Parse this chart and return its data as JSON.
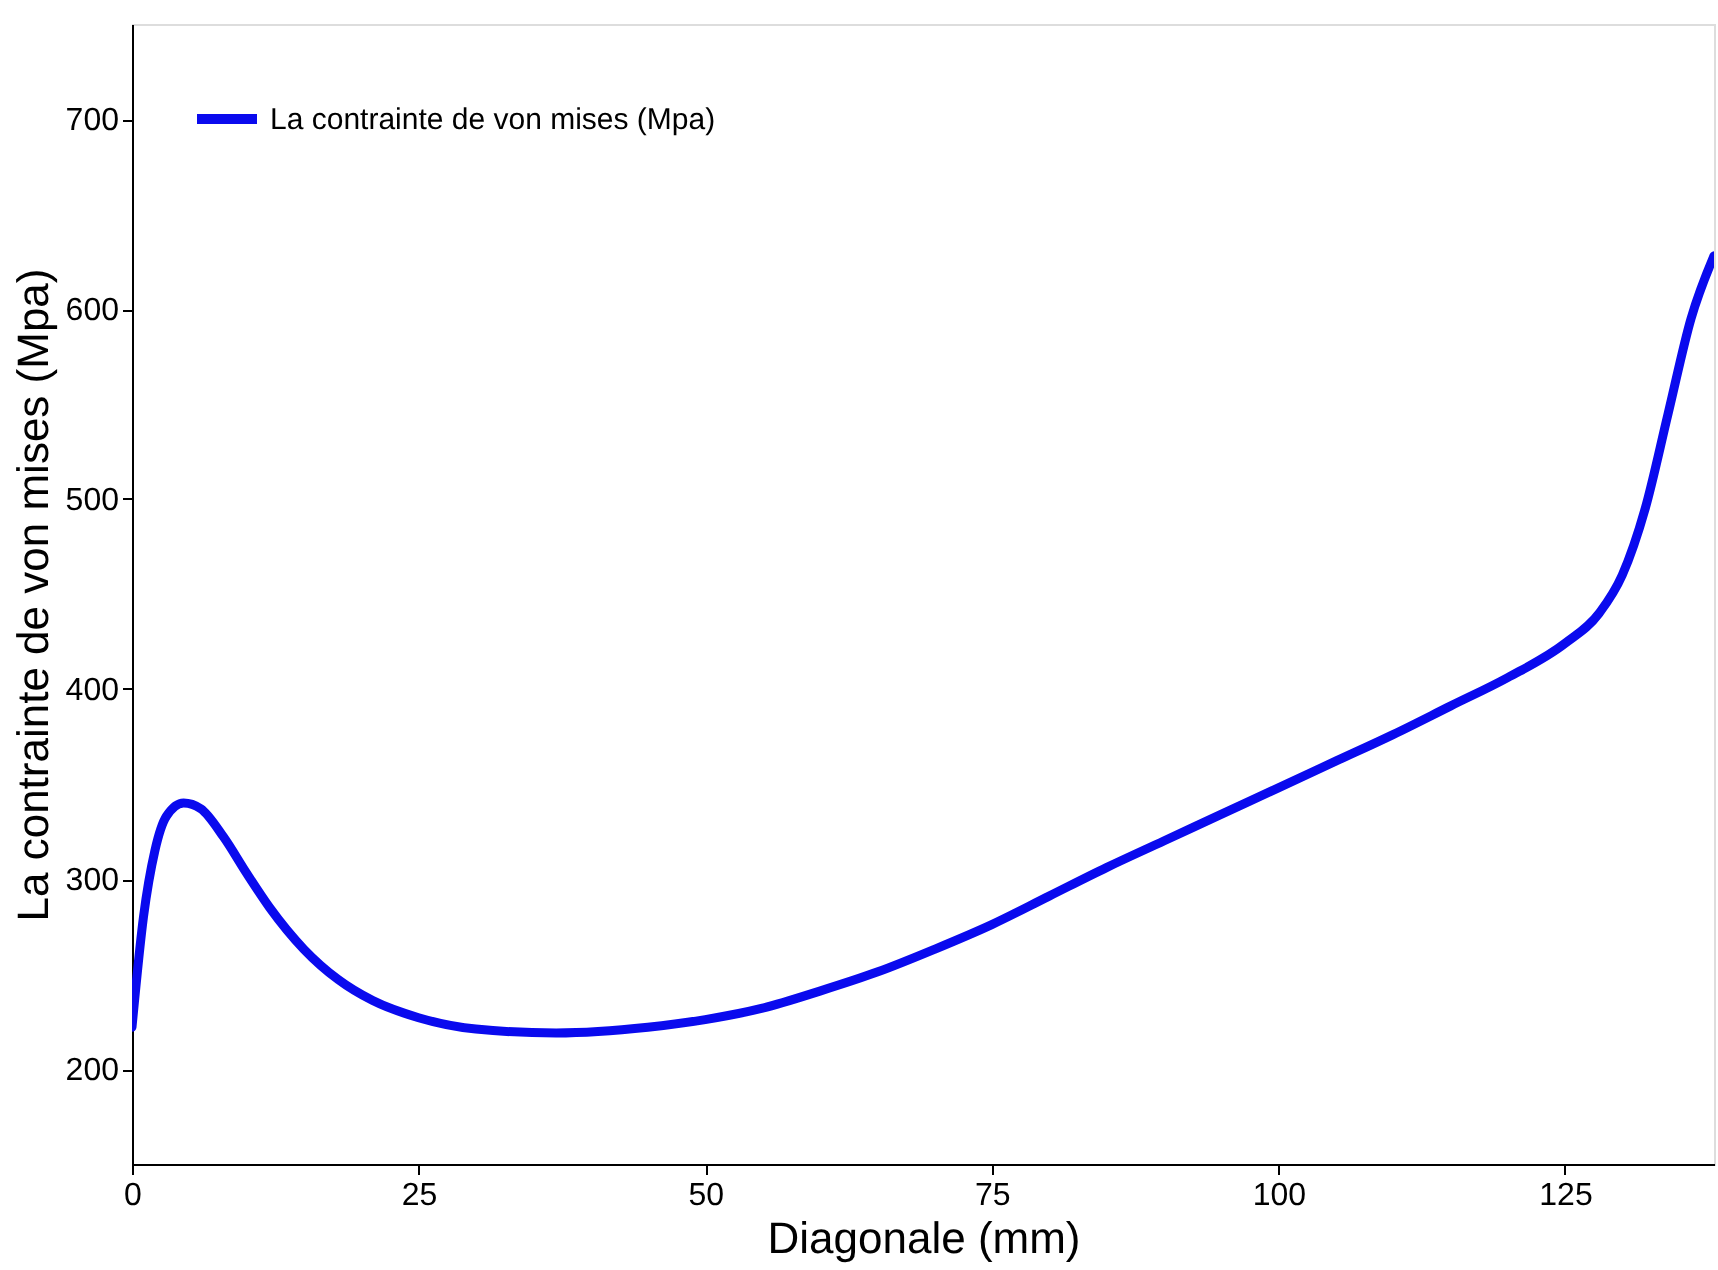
{
  "chart_data": {
    "type": "line",
    "xlabel": "Diagonale (mm)",
    "ylabel": "La contrainte de von mises (Mpa)",
    "xlim": [
      0,
      138
    ],
    "ylim": [
      150,
      750
    ],
    "xticks": [
      0,
      25,
      50,
      75,
      100,
      125
    ],
    "yticks": [
      200,
      300,
      400,
      500,
      600,
      700
    ],
    "grid": false,
    "legend": "top left",
    "line_style": "solid",
    "series": [
      {
        "name": "La contrainte de von mises (Mpa)",
        "color": "#0a0aee",
        "x": [
          0,
          1,
          2,
          3,
          4.5,
          6,
          8,
          10,
          12,
          15,
          18,
          21,
          25,
          30,
          37,
          45,
          50,
          55,
          60,
          65,
          70,
          75,
          80,
          85,
          90,
          95,
          100,
          105,
          110,
          115,
          120,
          125,
          128,
          130,
          132,
          134,
          136,
          138
        ],
        "values": [
          222,
          280,
          315,
          333,
          340,
          337,
          322,
          303,
          285,
          263,
          247,
          236,
          227,
          221,
          219,
          222,
          226,
          232,
          241,
          251,
          263,
          276,
          291,
          306,
          320,
          334,
          348,
          362,
          376,
          391,
          406,
          424,
          440,
          460,
          495,
          545,
          595,
          628
        ]
      }
    ]
  }
}
